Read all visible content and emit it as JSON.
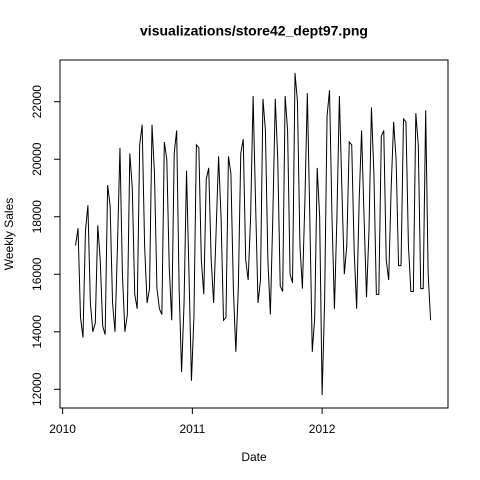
{
  "chart_data": {
    "type": "line",
    "title": "visualizations/store42_dept97.png",
    "xlabel": "Date",
    "ylabel": "Weekly Sales",
    "x": [
      2010.1,
      2010.119,
      2010.138,
      2010.157,
      2010.176,
      2010.195,
      2010.214,
      2010.233,
      2010.252,
      2010.271,
      2010.29,
      2010.309,
      2010.328,
      2010.347,
      2010.366,
      2010.385,
      2010.404,
      2010.423,
      2010.442,
      2010.461,
      2010.48,
      2010.499,
      2010.518,
      2010.537,
      2010.556,
      2010.575,
      2010.594,
      2010.613,
      2010.632,
      2010.651,
      2010.67,
      2010.689,
      2010.708,
      2010.727,
      2010.746,
      2010.765,
      2010.784,
      2010.803,
      2010.822,
      2010.841,
      2010.86,
      2010.879,
      2010.898,
      2010.917,
      2010.936,
      2010.955,
      2010.974,
      2010.993,
      2011.012,
      2011.031,
      2011.05,
      2011.069,
      2011.088,
      2011.107,
      2011.126,
      2011.145,
      2011.164,
      2011.183,
      2011.202,
      2011.221,
      2011.24,
      2011.259,
      2011.278,
      2011.297,
      2011.316,
      2011.335,
      2011.354,
      2011.373,
      2011.392,
      2011.411,
      2011.43,
      2011.449,
      2011.468,
      2011.487,
      2011.506,
      2011.525,
      2011.544,
      2011.563,
      2011.582,
      2011.601,
      2011.62,
      2011.639,
      2011.658,
      2011.677,
      2011.696,
      2011.715,
      2011.734,
      2011.753,
      2011.772,
      2011.791,
      2011.81,
      2011.829,
      2011.848,
      2011.867,
      2011.886,
      2011.905,
      2011.924,
      2011.943,
      2011.962,
      2011.981,
      2012.0,
      2012.019,
      2012.038,
      2012.057,
      2012.076,
      2012.095,
      2012.114,
      2012.133,
      2012.152,
      2012.171,
      2012.19,
      2012.209,
      2012.228,
      2012.247,
      2012.266,
      2012.285,
      2012.304,
      2012.323,
      2012.342,
      2012.361,
      2012.38,
      2012.399,
      2012.418,
      2012.437,
      2012.456,
      2012.475,
      2012.494,
      2012.513,
      2012.532,
      2012.551,
      2012.57,
      2012.589,
      2012.608,
      2012.627,
      2012.646,
      2012.665,
      2012.684,
      2012.703,
      2012.722,
      2012.741,
      2012.76,
      2012.779,
      2012.798,
      2012.817,
      2012.836
    ],
    "series": [
      {
        "color": "#000000",
        "values": [
          17000,
          17600,
          14500,
          13800,
          17500,
          18400,
          15000,
          14000,
          14300,
          17700,
          16500,
          14200,
          13900,
          19100,
          18400,
          15000,
          14000,
          17000,
          20400,
          16000,
          14000,
          14600,
          20200,
          19000,
          15300,
          14800,
          20500,
          21200,
          17000,
          15000,
          15500,
          21200,
          19500,
          15500,
          14800,
          14600,
          20600,
          20000,
          16200,
          14400,
          20200,
          21000,
          15500,
          12600,
          15000,
          19600,
          16000,
          12300,
          14500,
          20500,
          20400,
          16500,
          15300,
          19300,
          19700,
          16500,
          15000,
          17500,
          20100,
          18000,
          14400,
          14500,
          20100,
          19500,
          15500,
          13300,
          15500,
          20200,
          20700,
          16500,
          15800,
          18000,
          22200,
          18500,
          15000,
          15800,
          22100,
          21000,
          16500,
          14600,
          18000,
          22100,
          20000,
          15600,
          15400,
          22200,
          21000,
          16000,
          15700,
          23000,
          22000,
          17000,
          15500,
          18500,
          22300,
          18000,
          13300,
          14500,
          19700,
          18000,
          11800,
          15000,
          21500,
          22400,
          18000,
          14800,
          18000,
          22200,
          19000,
          16000,
          17000,
          20600,
          20500,
          16800,
          14800,
          18500,
          21000,
          18000,
          15200,
          17500,
          21800,
          19500,
          15300,
          15300,
          20800,
          21000,
          16500,
          15800,
          19000,
          21300,
          20000,
          16300,
          16300,
          21400,
          21300,
          17000,
          15400,
          15400,
          21600,
          20500,
          15500,
          15500,
          21700,
          16000,
          14400
        ]
      }
    ],
    "xlim": [
      2009.98,
      2012.97
    ],
    "xticks": [
      2010,
      2011,
      2012
    ],
    "ylim": [
      11350,
      23450
    ],
    "yticks": [
      12000,
      14000,
      16000,
      18000,
      20000,
      22000
    ]
  }
}
